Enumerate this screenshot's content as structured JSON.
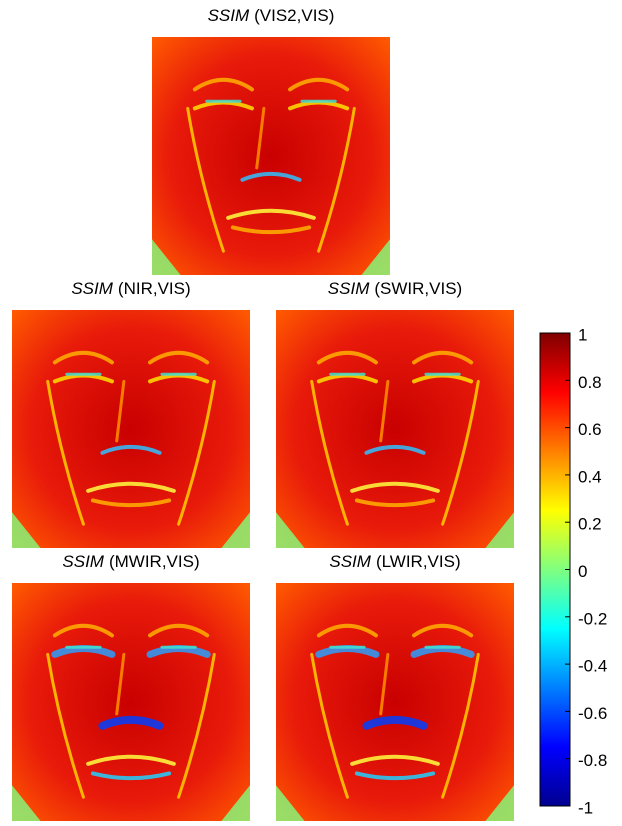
{
  "chart_data": {
    "type": "heatmap",
    "colormap": "jet",
    "panels": [
      {
        "title_italic": "SSIM",
        "title": "(VIS2,VIS)"
      },
      {
        "title_italic": "SSIM",
        "title": "(NIR,VIS)"
      },
      {
        "title_italic": "SSIM",
        "title": "(SWIR,VIS)"
      },
      {
        "title_italic": "SSIM",
        "title": "(MWIR,VIS)"
      },
      {
        "title_italic": "SSIM",
        "title": "(LWIR,VIS)"
      }
    ],
    "colorbar": {
      "lim": [
        -1,
        1
      ],
      "ticks": [
        1,
        0.8,
        0.6,
        0.4,
        0.2,
        0,
        -0.2,
        -0.4,
        -0.6,
        -0.8,
        -1
      ]
    }
  }
}
